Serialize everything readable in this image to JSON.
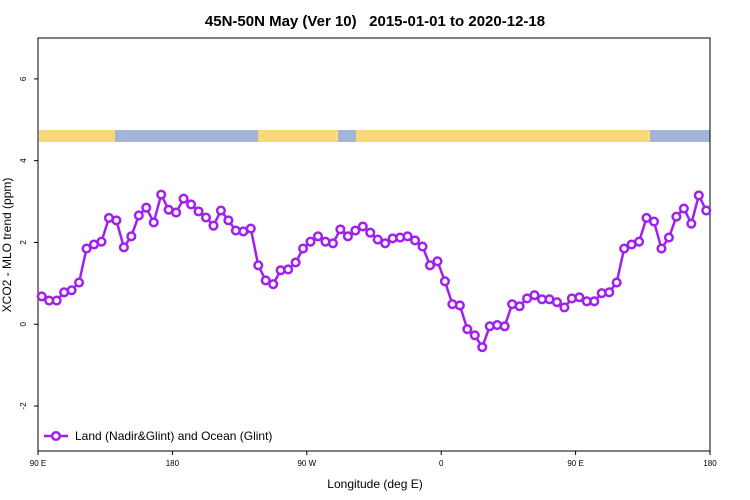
{
  "chart_data": {
    "type": "line",
    "title": "45N-50N May (Ver 10)   2015-01-01 to 2020-12-18",
    "xlabel": "Longitude (deg E)",
    "ylabel": "XCO2 - MLO trend (ppm)",
    "x": [
      92.5,
      97.5,
      102.5,
      107.5,
      112.5,
      117.5,
      122.5,
      127.5,
      132.5,
      137.5,
      142.5,
      147.5,
      152.5,
      157.5,
      162.5,
      167.5,
      172.5,
      177.5,
      182.5,
      187.5,
      192.5,
      197.5,
      202.5,
      207.5,
      212.5,
      217.5,
      222.5,
      227.5,
      232.5,
      237.5,
      242.5,
      247.5,
      252.5,
      257.5,
      262.5,
      267.5,
      272.5,
      277.5,
      282.5,
      287.5,
      292.5,
      297.5,
      302.5,
      307.5,
      312.5,
      317.5,
      322.5,
      327.5,
      332.5,
      337.5,
      342.5,
      347.5,
      352.5,
      357.5,
      362.5,
      367.5,
      372.5,
      377.5,
      382.5,
      387.5,
      392.5,
      397.5,
      402.5,
      407.5,
      412.5,
      417.5,
      422.5,
      427.5,
      432.5,
      437.5,
      442.5,
      447.5,
      452.5,
      457.5,
      462.5,
      467.5,
      472.5,
      477.5,
      482.5,
      487.5,
      492.5,
      497.5,
      502.5,
      507.5,
      512.5,
      517.5,
      522.5,
      527.5,
      532.5,
      537.5
    ],
    "series": [
      {
        "name": "Land (Nadir&Glint) and Ocean (Glint)",
        "color": "#a020f0",
        "values": [
          0.68,
          0.58,
          0.58,
          0.78,
          0.83,
          1.02,
          1.85,
          1.95,
          2.02,
          2.6,
          2.54,
          1.88,
          2.15,
          2.66,
          2.85,
          2.49,
          3.17,
          2.8,
          2.73,
          3.07,
          2.93,
          2.76,
          2.61,
          2.41,
          2.78,
          2.54,
          2.29,
          2.27,
          2.34,
          1.44,
          1.07,
          0.98,
          1.32,
          1.34,
          1.51,
          1.85,
          2.02,
          2.15,
          2.02,
          1.98,
          2.32,
          2.15,
          2.29,
          2.39,
          2.24,
          2.07,
          1.98,
          2.1,
          2.12,
          2.15,
          2.05,
          1.9,
          1.44,
          1.54,
          1.05,
          0.49,
          0.46,
          -0.12,
          -0.27,
          -0.56,
          -0.05,
          -0.02,
          -0.05,
          0.49,
          0.44,
          0.63,
          0.71,
          0.61,
          0.61,
          0.54,
          0.41,
          0.63,
          0.66,
          0.56,
          0.56,
          0.76,
          0.78,
          1.02,
          1.85,
          1.95,
          2.02,
          2.6,
          2.51,
          1.85,
          2.12,
          2.63,
          2.83,
          2.46,
          3.15,
          2.78
        ]
      }
    ],
    "xlim": [
      90,
      540
    ],
    "xticks": [
      {
        "value": 90,
        "label": "90 E"
      },
      {
        "value": 180,
        "label": "180"
      },
      {
        "value": 270,
        "label": "90 W"
      },
      {
        "value": 360,
        "label": "0"
      },
      {
        "value": 450,
        "label": "90 E"
      },
      {
        "value": 540,
        "label": "180"
      }
    ],
    "ylim": [
      -3.1,
      7
    ],
    "yticks": [
      -2,
      0,
      2,
      4,
      6
    ],
    "legend": "bottom-left"
  }
}
